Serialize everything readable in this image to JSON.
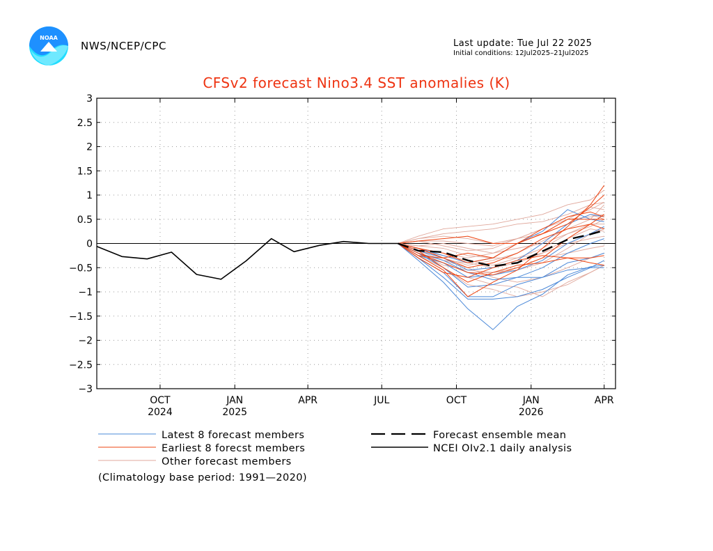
{
  "header": {
    "agency": "NWS/NCEP/CPC",
    "logo_text": "NOAA",
    "last_update": "Last update: Tue Jul 22 2025",
    "initial_conditions": "Initial conditions: 12Jul2025–21Jul2025"
  },
  "colors": {
    "latest": "#4a88d8",
    "earliest": "#ee4411",
    "other": "#e0a89c",
    "analysis": "#000000",
    "title": "#ee3311",
    "logo_blue": "#1e90ff",
    "logo_cyan": "#22ddff"
  },
  "chart_data": {
    "type": "line",
    "title": "CFSv2 forecast Nino3.4 SST anomalies (K)",
    "ylim": [
      -3,
      3
    ],
    "xlim": [
      "2024-07-15",
      "2026-04-15"
    ],
    "yticks": [
      3,
      2.5,
      2,
      1.5,
      1,
      0.5,
      0,
      -0.5,
      -1,
      -1.5,
      -2,
      -2.5,
      -3
    ],
    "ytick_labels": [
      "3",
      "2.5",
      "2",
      "1.5",
      "1",
      "0.5",
      "0",
      "−0.5",
      "−1",
      "−1.5",
      "−2",
      "−2.5",
      "−3"
    ],
    "xticks": [
      {
        "date": "2024-10-01",
        "label": "OCT",
        "year": "2024"
      },
      {
        "date": "2025-01-01",
        "label": "JAN",
        "year": "2025"
      },
      {
        "date": "2025-04-01",
        "label": "APR",
        "year": ""
      },
      {
        "date": "2025-07-01",
        "label": "JUL",
        "year": ""
      },
      {
        "date": "2025-10-01",
        "label": "OCT",
        "year": ""
      },
      {
        "date": "2026-01-01",
        "label": "JAN",
        "year": "2026"
      },
      {
        "date": "2026-04-01",
        "label": "APR",
        "year": ""
      }
    ],
    "grid": true,
    "zero_line": true,
    "forecast_dates": [
      "2025-07-21",
      "2025-08-15",
      "2025-09-15",
      "2025-10-15",
      "2025-11-15",
      "2025-12-15",
      "2026-01-15",
      "2026-02-15",
      "2026-03-15",
      "2026-04-01"
    ],
    "series": [
      {
        "name": "NCEI OIv2.1 daily analysis",
        "role": "analysis",
        "x": [
          "2024-07-15",
          "2024-08-15",
          "2024-09-15",
          "2024-10-15",
          "2024-11-15",
          "2024-12-15",
          "2025-01-15",
          "2025-02-15",
          "2025-03-15",
          "2025-04-15",
          "2025-05-15",
          "2025-06-15",
          "2025-07-21"
        ],
        "values": [
          -0.06,
          -0.27,
          -0.32,
          -0.18,
          -0.64,
          -0.74,
          -0.36,
          0.1,
          -0.17,
          -0.04,
          0.04,
          0.0,
          0.0
        ]
      },
      {
        "name": "Forecast ensemble mean",
        "role": "mean",
        "values": [
          0.0,
          -0.15,
          -0.18,
          -0.35,
          -0.47,
          -0.4,
          -0.16,
          0.08,
          0.19,
          0.27
        ]
      }
    ],
    "latest_members": [
      [
        0.0,
        -0.35,
        -0.8,
        -1.35,
        -1.78,
        -1.3,
        -1.05,
        -0.65,
        -0.48,
        -0.45
      ],
      [
        0.0,
        -0.3,
        -0.6,
        -1.1,
        -1.1,
        -0.85,
        -0.7,
        -0.4,
        -0.3,
        -0.2
      ],
      [
        0.0,
        -0.2,
        -0.5,
        -0.9,
        -0.85,
        -0.7,
        -0.5,
        -0.2,
        0.0,
        0.1
      ],
      [
        0.0,
        -0.25,
        -0.4,
        -0.7,
        -0.65,
        -0.55,
        -0.35,
        0.0,
        0.2,
        0.35
      ],
      [
        0.0,
        -0.15,
        -0.3,
        -0.55,
        -0.5,
        -0.35,
        0.0,
        0.4,
        0.6,
        0.55
      ],
      [
        0.0,
        -0.2,
        -0.35,
        -0.6,
        -0.75,
        -0.7,
        -0.7,
        -0.55,
        -0.5,
        -0.5
      ],
      [
        0.0,
        -0.1,
        -0.25,
        -0.4,
        -0.3,
        0.0,
        0.25,
        0.7,
        0.5,
        0.45
      ],
      [
        0.0,
        -0.3,
        -0.7,
        -1.15,
        -1.15,
        -1.1,
        -0.95,
        -0.7,
        -0.5,
        -0.35
      ]
    ],
    "earliest_members": [
      [
        0.0,
        -0.25,
        -0.55,
        -1.1,
        -0.8,
        -0.55,
        -0.1,
        0.35,
        0.8,
        1.2
      ],
      [
        0.0,
        -0.1,
        -0.2,
        -0.4,
        -0.3,
        0.0,
        0.2,
        0.4,
        0.75,
        1.0
      ],
      [
        0.0,
        -0.2,
        -0.4,
        -0.6,
        -0.65,
        -0.5,
        -0.3,
        0.1,
        0.4,
        0.6
      ],
      [
        0.0,
        0.05,
        0.1,
        0.15,
        0.0,
        0.0,
        0.2,
        0.5,
        0.5,
        0.5
      ],
      [
        0.0,
        -0.3,
        -0.6,
        -0.7,
        -0.5,
        -0.35,
        -0.25,
        -0.3,
        -0.3,
        -0.25
      ],
      [
        0.0,
        -0.15,
        -0.5,
        -0.8,
        -0.6,
        -0.45,
        -0.4,
        -0.3,
        -0.4,
        -0.45
      ],
      [
        0.0,
        -0.25,
        -0.3,
        -0.2,
        -0.3,
        0.0,
        0.3,
        0.55,
        0.65,
        0.55
      ],
      [
        0.0,
        -0.1,
        -0.3,
        -0.5,
        -0.4,
        -0.2,
        0.1,
        0.3,
        0.4,
        0.3
      ]
    ],
    "other_members": [
      [
        0.0,
        0.15,
        0.3,
        0.35,
        0.4,
        0.5,
        0.6,
        0.8,
        0.9,
        1.1
      ],
      [
        0.0,
        0.1,
        0.2,
        0.25,
        0.3,
        0.4,
        0.45,
        0.6,
        0.8,
        0.85
      ],
      [
        0.0,
        -0.05,
        0.0,
        -0.1,
        -0.2,
        0.0,
        0.2,
        0.5,
        0.75,
        0.7
      ],
      [
        0.0,
        -0.2,
        -0.45,
        -0.55,
        -0.6,
        -0.55,
        -0.4,
        -0.1,
        0.2,
        0.3
      ],
      [
        0.0,
        -0.3,
        -0.6,
        -0.7,
        -0.85,
        -0.9,
        -1.1,
        -0.8,
        -0.6,
        -0.45
      ],
      [
        0.0,
        -0.1,
        -0.2,
        -0.3,
        -0.2,
        -0.1,
        0.0,
        0.2,
        0.4,
        0.4
      ],
      [
        0.0,
        0.05,
        -0.05,
        -0.15,
        -0.1,
        0.1,
        0.3,
        0.5,
        0.55,
        0.6
      ],
      [
        0.0,
        -0.2,
        -0.35,
        -0.4,
        -0.5,
        -0.4,
        -0.2,
        0.0,
        0.1,
        0.15
      ],
      [
        0.0,
        -0.15,
        -0.25,
        -0.35,
        -0.45,
        -0.3,
        -0.1,
        0.2,
        0.35,
        0.5
      ],
      [
        0.0,
        0.1,
        0.15,
        0.1,
        0.0,
        0.1,
        0.2,
        0.4,
        0.6,
        0.5
      ],
      [
        0.0,
        -0.25,
        -0.5,
        -0.85,
        -0.95,
        -1.1,
        -1.0,
        -0.85,
        -0.6,
        -0.45
      ],
      [
        0.0,
        -0.05,
        -0.1,
        -0.25,
        -0.3,
        -0.3,
        -0.2,
        0.1,
        0.3,
        0.25
      ],
      [
        0.0,
        -0.1,
        -0.3,
        -0.45,
        -0.35,
        -0.2,
        0.05,
        0.3,
        0.5,
        0.8
      ],
      [
        0.0,
        -0.2,
        -0.4,
        -0.6,
        -0.6,
        -0.5,
        -0.3,
        -0.2,
        -0.1,
        -0.05
      ],
      [
        0.0,
        0.05,
        0.05,
        0.0,
        -0.05,
        0.1,
        0.3,
        0.55,
        0.7,
        0.85
      ],
      [
        0.0,
        -0.15,
        -0.35,
        -0.5,
        -0.7,
        -0.8,
        -0.7,
        -0.5,
        -0.3,
        -0.2
      ]
    ],
    "legend": [
      {
        "label": "Latest 8 forecast members",
        "role": "latest"
      },
      {
        "label": "Earliest 8 forecst members",
        "role": "earliest"
      },
      {
        "label": "Other forecast members",
        "role": "other"
      },
      {
        "label": "Forecast ensemble mean",
        "role": "mean"
      },
      {
        "label": "NCEI OIv2.1 daily analysis",
        "role": "analysis"
      }
    ],
    "legend_placement": "bottom",
    "footnote": "(Climatology base period: 1991—2020)"
  }
}
